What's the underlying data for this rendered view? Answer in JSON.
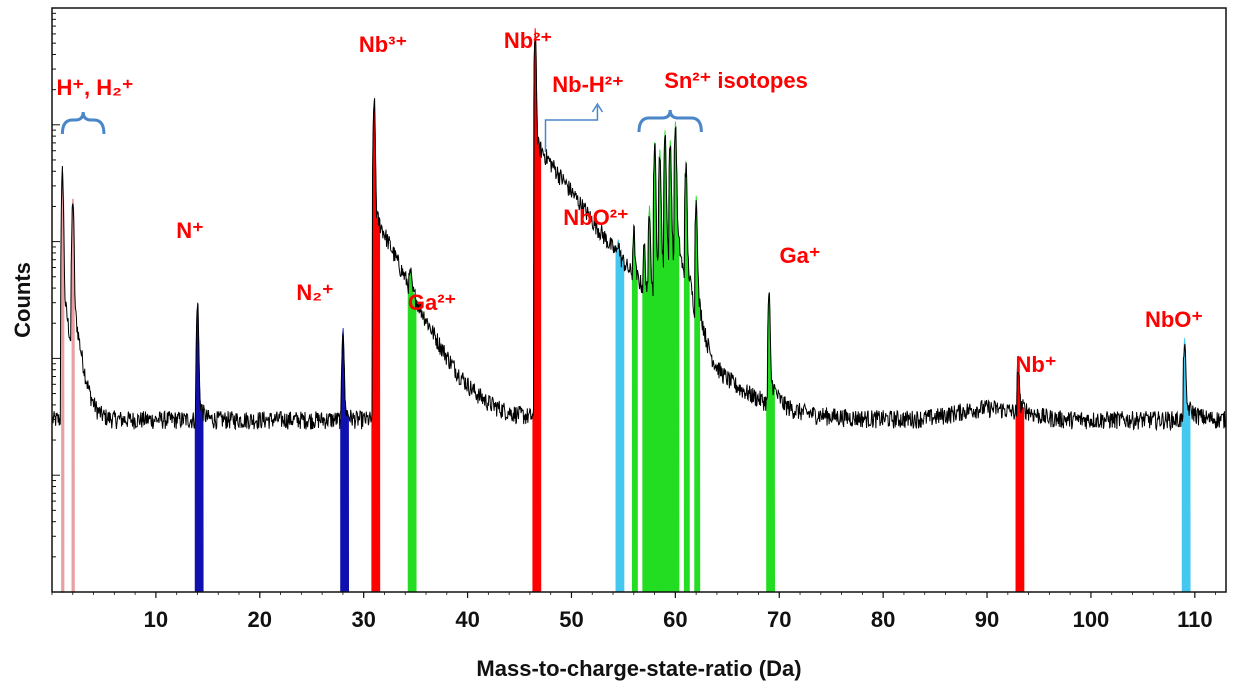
{
  "chart_data": {
    "type": "line",
    "title": "",
    "xlabel": "Mass-to-charge-state-ratio (Da)",
    "ylabel": "Counts",
    "xlim": [
      0,
      113
    ],
    "yscale": "log",
    "y_tick_labels_shown": false,
    "grid": false,
    "background_level_counts": 30,
    "x_ticks": [
      10,
      20,
      30,
      40,
      50,
      60,
      70,
      80,
      90,
      100,
      110
    ],
    "peaks": [
      {
        "ion": "H+",
        "mass": 1.0,
        "height": 3500,
        "tail": 0.6,
        "color": "#e8a0a0"
      },
      {
        "ion": "H2+",
        "mass": 2.0,
        "height": 2000,
        "tail": 0.6,
        "color": "#e8a0a0"
      },
      {
        "ion": "N+",
        "mass": 14.0,
        "height": 250,
        "tail": 0.3,
        "color": "#1010b0"
      },
      {
        "ion": "N2+",
        "mass": 28.0,
        "height": 140,
        "tail": 0.3,
        "color": "#1010b0"
      },
      {
        "ion": "Nb3+",
        "mass": 31.0,
        "height": 15000,
        "tail": 2.2,
        "color": "#ff0000"
      },
      {
        "ion": "Ga2+",
        "mass": 34.5,
        "height": 140,
        "tail": 0.5,
        "color": "#22dd22"
      },
      {
        "ion": "Nb2+",
        "mass": 46.5,
        "height": 60000,
        "tail": 3.5,
        "color": "#ff0000"
      },
      {
        "ion": "NbO2+",
        "mass": 54.5,
        "height": 250,
        "tail": 0.5,
        "color": "#44c8f0"
      },
      {
        "ion": "Sn2+",
        "mass": 56.0,
        "height": 700,
        "tail": 0.4,
        "color": "#22dd22"
      },
      {
        "ion": "Sn2+",
        "mass": 57.0,
        "height": 500,
        "tail": 0.4,
        "color": "#22dd22"
      },
      {
        "ion": "Sn2+",
        "mass": 57.5,
        "height": 1500,
        "tail": 0.4,
        "color": "#22dd22"
      },
      {
        "ion": "Sn2+",
        "mass": 58.0,
        "height": 6000,
        "tail": 0.5,
        "color": "#22dd22"
      },
      {
        "ion": "Sn2+",
        "mass": 58.5,
        "height": 5000,
        "tail": 0.5,
        "color": "#22dd22"
      },
      {
        "ion": "Sn2+",
        "mass": 59.0,
        "height": 7500,
        "tail": 0.5,
        "color": "#22dd22"
      },
      {
        "ion": "Sn2+",
        "mass": 59.5,
        "height": 6000,
        "tail": 0.5,
        "color": "#22dd22"
      },
      {
        "ion": "Sn2+",
        "mass": 60.0,
        "height": 9000,
        "tail": 0.6,
        "color": "#22dd22"
      },
      {
        "ion": "Sn2+",
        "mass": 61.0,
        "height": 4000,
        "tail": 0.5,
        "color": "#22dd22"
      },
      {
        "ion": "Sn2+",
        "mass": 62.0,
        "height": 2000,
        "tail": 0.5,
        "color": "#22dd22"
      },
      {
        "ion": "Ga+",
        "mass": 69.0,
        "height": 300,
        "tail": 0.6,
        "color": "#22dd22"
      },
      {
        "ion": "Nb+",
        "mass": 93.0,
        "height": 60,
        "tail": 1.0,
        "color": "#ff0000"
      },
      {
        "ion": "NbO+",
        "mass": 109.0,
        "height": 110,
        "tail": 0.8,
        "color": "#44c8f0"
      }
    ],
    "annotations": [
      {
        "text": "H⁺, H₂⁺",
        "mass": 6.0,
        "color": "#ff0000"
      },
      {
        "text": "N⁺",
        "mass": 14.0,
        "color": "#ff0000"
      },
      {
        "text": "N₂⁺",
        "mass": 26.0,
        "color": "#ff0000"
      },
      {
        "text": "Nb³⁺",
        "mass": 32.0,
        "color": "#ff0000"
      },
      {
        "text": "Ga²⁺",
        "mass": 36.0,
        "color": "#ff0000"
      },
      {
        "text": "Nb²⁺",
        "mass": 46.5,
        "color": "#ff0000"
      },
      {
        "text": "Nb-H²⁺",
        "mass": 52.0,
        "color": "#ff0000"
      },
      {
        "text": "NbO²⁺",
        "mass": 53.5,
        "color": "#ff0000"
      },
      {
        "text": "Sn²⁺ isotopes",
        "mass": 64.0,
        "color": "#ff0000"
      },
      {
        "text": "Ga⁺",
        "mass": 72.0,
        "color": "#ff0000"
      },
      {
        "text": "Nb⁺",
        "mass": 94.0,
        "color": "#ff0000"
      },
      {
        "text": "NbO⁺",
        "mass": 107.0,
        "color": "#ff0000"
      }
    ],
    "brackets": [
      {
        "label_ref": "H⁺, H₂⁺",
        "x_range": [
          1.0,
          5.0
        ],
        "color": "#4a86c8"
      },
      {
        "label_ref": "Sn²⁺ isotopes",
        "x_range": [
          56.5,
          62.5
        ],
        "color": "#4a86c8"
      }
    ],
    "arrows": [
      {
        "label_ref": "Nb-H²⁺",
        "from_mass": 47.5,
        "to_mass": 52.5,
        "color": "#4a86c8"
      }
    ],
    "line_color": "#000000"
  }
}
